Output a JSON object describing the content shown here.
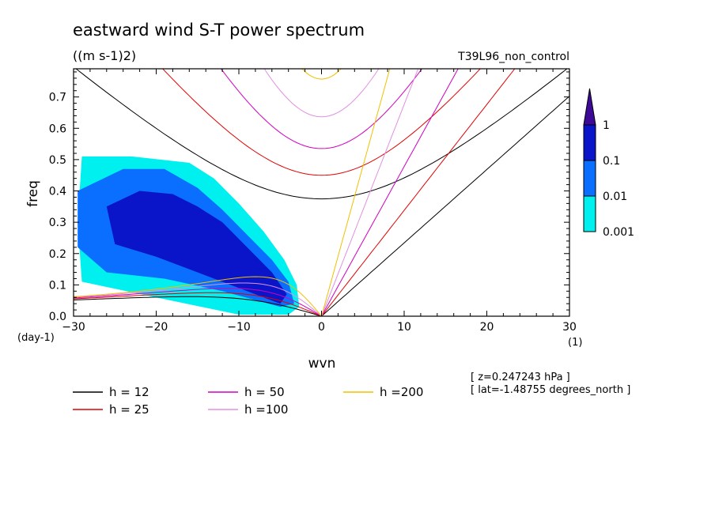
{
  "chart_data": {
    "type": "contour",
    "title": "eastward wind S-T power spectrum",
    "units": "((m s-1)2)",
    "run_label": "T39L96_non_control",
    "xlabel": "wvn",
    "ylabel": "freq",
    "x_unit": "(1)",
    "y_unit": "(day-1)",
    "xlim": [
      -30,
      30
    ],
    "ylim": [
      0.0,
      0.79
    ],
    "x_ticks": [
      "-30",
      "-20",
      "-10",
      "0",
      "10",
      "20",
      "30"
    ],
    "y_ticks": [
      "0.0",
      "0.1",
      "0.2",
      "0.3",
      "0.4",
      "0.5",
      "0.6",
      "0.7"
    ],
    "grid": false,
    "colorbar": {
      "levels": [
        "0.001",
        "0.01",
        "0.1",
        "1"
      ],
      "colors": [
        "#00f0f0",
        "#0a6eff",
        "#0a14c8",
        "#3c0a96"
      ]
    },
    "power_regions": [
      {
        "level": "0.001",
        "color": "#00f0f0",
        "points": [
          [
            -29,
            0.51
          ],
          [
            -23,
            0.51
          ],
          [
            -16,
            0.49
          ],
          [
            -13,
            0.44
          ],
          [
            -10,
            0.36
          ],
          [
            -7,
            0.27
          ],
          [
            -4.5,
            0.18
          ],
          [
            -3,
            0.1
          ],
          [
            -2.7,
            0.03
          ],
          [
            -4,
            0.005
          ],
          [
            -10,
            0.005
          ],
          [
            -20,
            0.06
          ],
          [
            -29,
            0.11
          ],
          [
            -29.5,
            0.3
          ]
        ]
      },
      {
        "level": "0.01",
        "color": "#0a6eff",
        "points": [
          [
            -29.5,
            0.4
          ],
          [
            -24,
            0.47
          ],
          [
            -19,
            0.47
          ],
          [
            -15,
            0.41
          ],
          [
            -12,
            0.34
          ],
          [
            -9,
            0.26
          ],
          [
            -6,
            0.18
          ],
          [
            -4,
            0.11
          ],
          [
            -3.3,
            0.04
          ],
          [
            -5,
            0.03
          ],
          [
            -12,
            0.08
          ],
          [
            -19,
            0.12
          ],
          [
            -26,
            0.14
          ],
          [
            -29.5,
            0.22
          ]
        ]
      },
      {
        "level": "0.1",
        "color": "#0a14c8",
        "points": [
          [
            -26,
            0.35
          ],
          [
            -22,
            0.4
          ],
          [
            -18,
            0.39
          ],
          [
            -15,
            0.35
          ],
          [
            -12,
            0.3
          ],
          [
            -9,
            0.22
          ],
          [
            -6,
            0.14
          ],
          [
            -4.2,
            0.07
          ],
          [
            -5,
            0.04
          ],
          [
            -9,
            0.08
          ],
          [
            -14,
            0.13
          ],
          [
            -20,
            0.19
          ],
          [
            -25,
            0.23
          ]
        ]
      }
    ],
    "kelvin_gravity_curves": [
      {
        "h": 12,
        "label": "h = 12",
        "color": "#000000"
      },
      {
        "h": 25,
        "label": "h = 25",
        "color": "#e00000"
      },
      {
        "h": 50,
        "label": "h = 50",
        "color": "#d000c0"
      },
      {
        "h": 100,
        "label": "h =100",
        "color": "#e090e0"
      },
      {
        "h": 200,
        "label": "h =200",
        "color": "#f0c000"
      }
    ],
    "annotations": [
      "[ z=0.247243 hPa ]",
      "[ lat=-1.48755 degrees_north ]"
    ]
  }
}
